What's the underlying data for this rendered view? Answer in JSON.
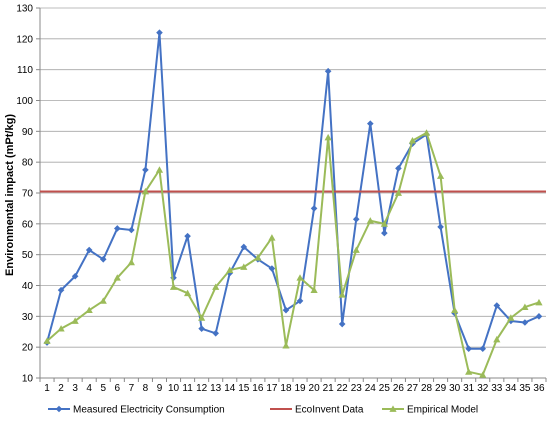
{
  "chart_data": {
    "type": "line",
    "title": "",
    "xlabel": "",
    "ylabel": "Environmental impact  (mPt/kg)",
    "categories": [
      "1",
      "2",
      "3",
      "4",
      "5",
      "6",
      "7",
      "8",
      "9",
      "10",
      "11",
      "12",
      "13",
      "14",
      "15",
      "16",
      "17",
      "18",
      "19",
      "20",
      "21",
      "22",
      "23",
      "24",
      "25",
      "26",
      "27",
      "28",
      "29",
      "30",
      "31",
      "32",
      "33",
      "34",
      "35",
      "36"
    ],
    "ylim": [
      10,
      130
    ],
    "yticks": [
      10,
      20,
      30,
      40,
      50,
      60,
      70,
      80,
      90,
      100,
      110,
      120,
      130
    ],
    "grid": true,
    "legend": "bottom",
    "series": [
      {
        "name": "Measured Electricity Consumption",
        "color": "#4472C4",
        "marker": "diamond",
        "values": [
          21.5,
          38.5,
          43,
          51.5,
          48.5,
          58.5,
          58,
          77.5,
          122,
          42.5,
          56,
          26,
          24.5,
          44,
          52.5,
          48.5,
          45.5,
          32,
          35,
          65,
          109.5,
          27.5,
          61.5,
          92.5,
          57,
          78,
          86,
          89,
          59,
          31,
          19.5,
          19.5,
          33.5,
          28.5,
          28,
          30
        ]
      },
      {
        "name": "EcoInvent Data",
        "color": "#C0504D",
        "marker": "none",
        "values": [
          70.5,
          70.5,
          70.5,
          70.5,
          70.5,
          70.5,
          70.5,
          70.5,
          70.5,
          70.5,
          70.5,
          70.5,
          70.5,
          70.5,
          70.5,
          70.5,
          70.5,
          70.5,
          70.5,
          70.5,
          70.5,
          70.5,
          70.5,
          70.5,
          70.5,
          70.5,
          70.5,
          70.5,
          70.5,
          70.5,
          70.5,
          70.5,
          70.5,
          70.5,
          70.5,
          70.5
        ]
      },
      {
        "name": "Empirical Model",
        "color": "#9BBB59",
        "marker": "triangle",
        "values": [
          22,
          26,
          28.5,
          32,
          35,
          42.5,
          47.5,
          70.5,
          77.5,
          39.5,
          37.5,
          29.5,
          39.5,
          45,
          46,
          49,
          55.5,
          20.5,
          42.5,
          38.5,
          88,
          37,
          51.5,
          61,
          60,
          70,
          87,
          89.5,
          75.5,
          32,
          12,
          11,
          22.5,
          29.5,
          33,
          34.5
        ]
      }
    ]
  }
}
